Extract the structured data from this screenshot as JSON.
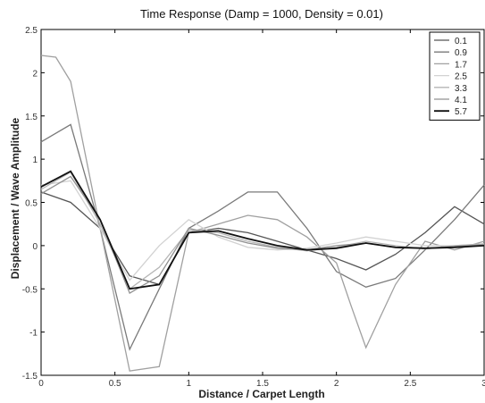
{
  "chart_data": {
    "type": "line",
    "title": "Time Response (Damp = 1000, Density = 0.01)",
    "xlabel": "Distance / Carpet Length",
    "ylabel": "Displacement / Wave Amplitude",
    "xlim": [
      0,
      3
    ],
    "ylim": [
      -1.5,
      2.5
    ],
    "x_ticks": [
      0,
      0.5,
      1,
      1.5,
      2,
      2.5,
      3
    ],
    "x_tick_labels": [
      "0",
      "0.5",
      "1",
      "1.5",
      "2",
      "2.5",
      "3"
    ],
    "y_ticks": [
      -1.5,
      -1,
      -0.5,
      0,
      0.5,
      1,
      1.5,
      2,
      2.5
    ],
    "y_tick_labels": [
      "-1.5",
      "-1",
      "-0.5",
      "0",
      "0.5",
      "1",
      "1.5",
      "2",
      "2.5"
    ],
    "grid": false,
    "legend_position": "top-right",
    "series": [
      {
        "name": "0.1",
        "color": "#555555",
        "x": [
          0,
          0.2,
          0.4,
          0.6,
          0.8,
          1.0,
          1.2,
          1.4,
          1.6,
          1.8,
          2.0,
          2.2,
          2.4,
          2.6,
          2.8,
          3.0
        ],
        "y": [
          0.62,
          0.5,
          0.2,
          -0.35,
          -0.45,
          0.15,
          0.2,
          0.15,
          0.05,
          -0.05,
          -0.15,
          -0.28,
          -0.1,
          0.15,
          0.45,
          0.25
        ]
      },
      {
        "name": "0.9",
        "color": "#7a7a7a",
        "x": [
          0,
          0.2,
          0.4,
          0.6,
          0.8,
          1.0,
          1.2,
          1.4,
          1.6,
          1.8,
          2.0,
          2.2,
          2.4,
          2.6,
          2.8,
          3.0
        ],
        "y": [
          1.2,
          1.4,
          0.2,
          -1.2,
          -0.5,
          0.2,
          0.4,
          0.62,
          0.62,
          0.2,
          -0.3,
          -0.48,
          -0.38,
          -0.05,
          0.3,
          0.7
        ]
      },
      {
        "name": "1.7",
        "color": "#a0a0a0",
        "x": [
          0,
          0.1,
          0.2,
          0.4,
          0.6,
          0.8,
          1.0,
          1.2,
          1.4,
          1.6,
          1.8,
          2.0,
          2.1,
          2.2,
          2.4,
          2.6,
          2.8,
          3.0
        ],
        "y": [
          2.2,
          2.18,
          1.9,
          0.2,
          -1.45,
          -1.4,
          0.15,
          0.25,
          0.35,
          0.3,
          0.1,
          -0.2,
          -0.7,
          -1.18,
          -0.45,
          0.05,
          -0.05,
          0.05
        ]
      },
      {
        "name": "2.5",
        "color": "#d2d2d2",
        "x": [
          0,
          0.2,
          0.4,
          0.6,
          0.8,
          1.0,
          1.2,
          1.4,
          1.6,
          1.8,
          2.0,
          2.2,
          2.4,
          2.6,
          2.8,
          3.0
        ],
        "y": [
          0.7,
          0.75,
          0.2,
          -0.4,
          0.0,
          0.3,
          0.1,
          -0.02,
          -0.05,
          -0.03,
          0.03,
          0.1,
          0.05,
          0.0,
          0.0,
          0.02
        ]
      },
      {
        "name": "3.3",
        "color": "#b5b5b5",
        "x": [
          0,
          0.2,
          0.4,
          0.6,
          0.8,
          1.0,
          1.2,
          1.4,
          1.6,
          1.8,
          2.0,
          2.2,
          2.4,
          2.6,
          2.8,
          3.0
        ],
        "y": [
          0.65,
          0.85,
          0.25,
          -0.5,
          -0.25,
          0.18,
          0.15,
          0.05,
          -0.02,
          -0.06,
          -0.02,
          0.05,
          0.0,
          -0.04,
          0.0,
          0.02
        ]
      },
      {
        "name": "4.1",
        "color": "#909090",
        "x": [
          0,
          0.2,
          0.4,
          0.6,
          0.8,
          1.0,
          1.2,
          1.4,
          1.6,
          1.8,
          2.0,
          2.2,
          2.4,
          2.6,
          2.8,
          3.0
        ],
        "y": [
          0.6,
          0.8,
          0.3,
          -0.55,
          -0.35,
          0.2,
          0.12,
          0.03,
          -0.03,
          -0.05,
          0.0,
          0.03,
          -0.02,
          -0.03,
          -0.01,
          0.01
        ]
      },
      {
        "name": "5.7",
        "color": "#111111",
        "x": [
          0,
          0.2,
          0.4,
          0.6,
          0.8,
          1.0,
          1.2,
          1.4,
          1.6,
          1.8,
          2.0,
          2.2,
          2.4,
          2.6,
          2.8,
          3.0
        ],
        "y": [
          0.68,
          0.86,
          0.3,
          -0.5,
          -0.45,
          0.15,
          0.17,
          0.08,
          0.0,
          -0.05,
          -0.03,
          0.03,
          -0.02,
          -0.03,
          -0.02,
          0.0
        ]
      }
    ]
  }
}
